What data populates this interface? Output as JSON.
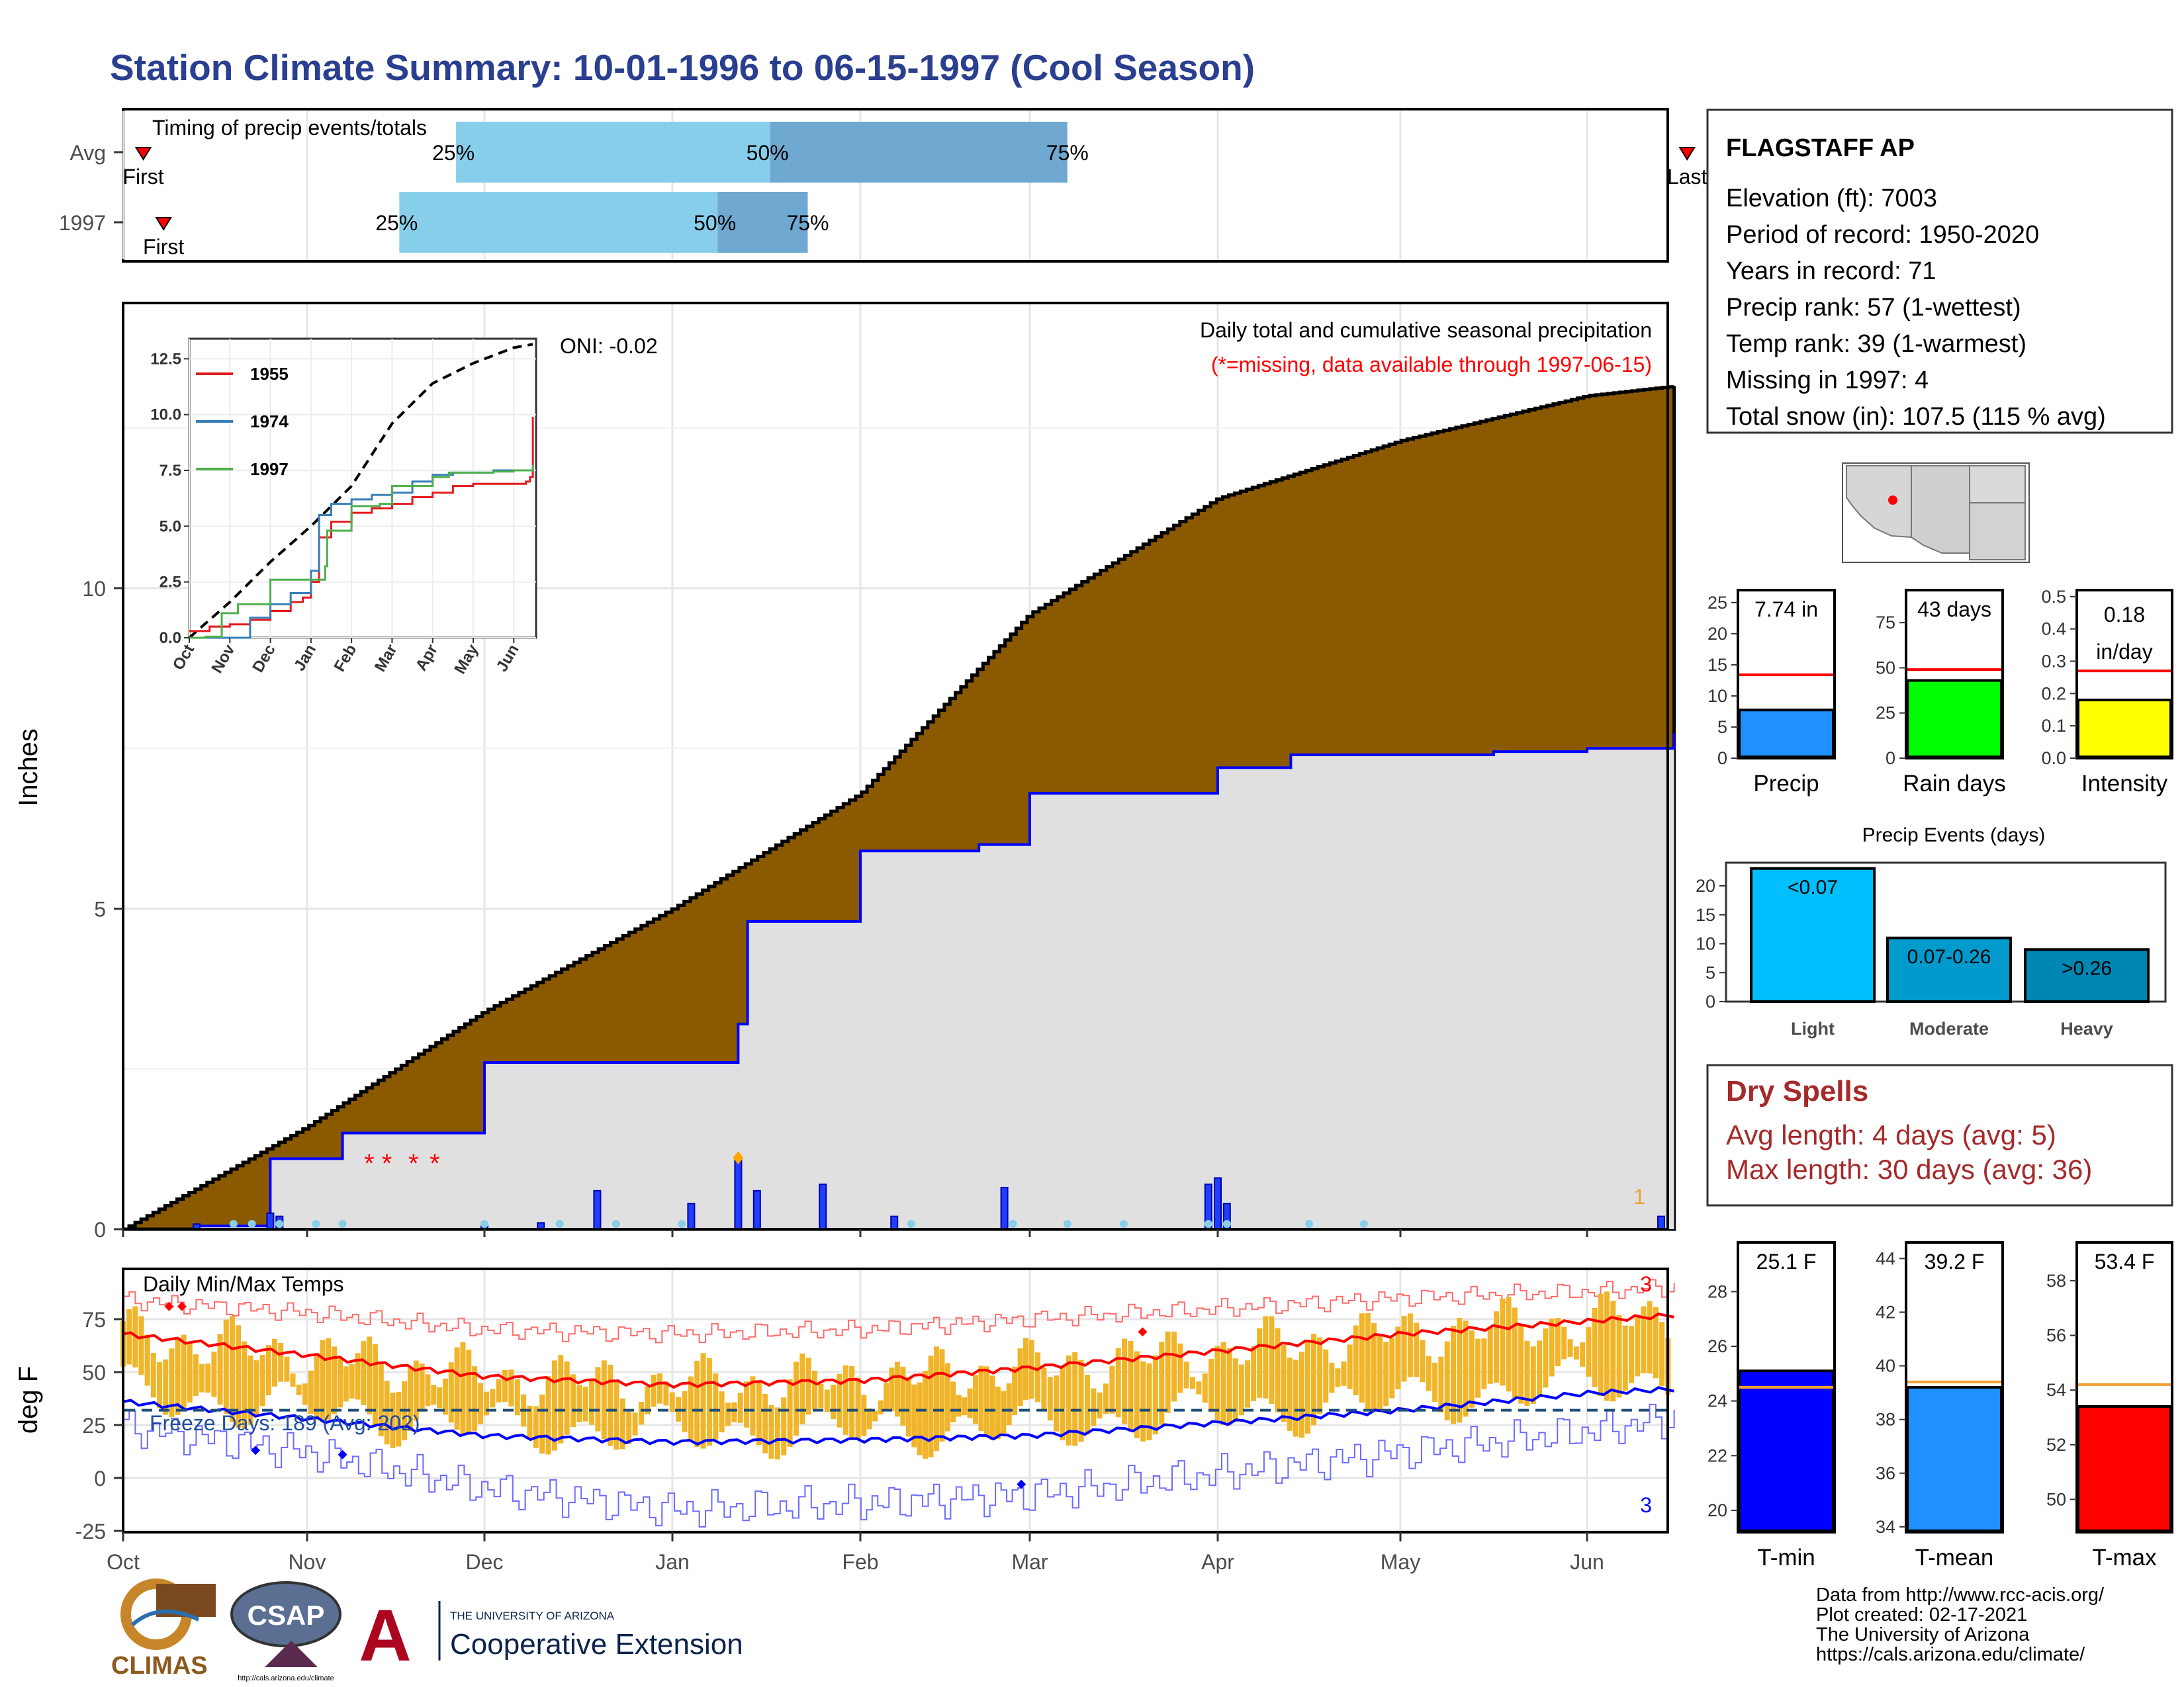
{
  "title": "Station Climate Summary: 10-01-1996 to 06-15-1997 (Cool Season)",
  "station": {
    "name": "FLAGSTAFF AP",
    "lines": [
      "Elevation (ft): 7003",
      "Period of record: 1950-2020",
      "Years in record: 71",
      "Precip rank: 57 (1-wettest)",
      "Temp rank: 39 (1-warmest)",
      "Missing in 1997: 4",
      "Total snow (in): 107.5 (115 % avg)"
    ]
  },
  "timing": {
    "title": "Timing of precip events/totals",
    "rows": [
      {
        "label": "Avg",
        "first": 0.11,
        "p25": 1.84,
        "p50": 3.52,
        "p75": 5.2,
        "last": 8.54,
        "first_label": "First",
        "last_label": "Last",
        "p25_label": "25%",
        "p50_label": "50%",
        "p75_label": "75%"
      },
      {
        "label": "1997",
        "first": 0.22,
        "p25": 1.52,
        "p50": 3.24,
        "p75": 3.72,
        "last": 8.9,
        "first_label": "First",
        "last_label": "Last",
        "p25_label": "25%",
        "p50_label": "50%",
        "p75_label": "75%"
      }
    ]
  },
  "colors": {
    "title": "#2a3f8f",
    "cum_avg_fill": "#8b5a00",
    "cum_obs_fill": "#e0e0e0",
    "cum_obs_line": "#0000ff",
    "bar_daily": "#1f3fff",
    "light_blue": "#87ceeb",
    "mid_blue": "#6fa8d0",
    "temp_bar": "#f0b52a",
    "red": "#ff0000",
    "dry_title": "#a52a2a"
  },
  "chart_data": [
    {
      "type": "area",
      "id": "cumulative",
      "title": "Daily total and cumulative seasonal precipitation",
      "subtitle": "(*=missing, data available through 1997-06-15)",
      "ylabel": "Inches",
      "ylim": [
        0,
        13.2
      ],
      "yticks": [
        "0",
        "5",
        "10"
      ],
      "x_months": [
        "Oct",
        "Nov",
        "Dec",
        "Jan",
        "Feb",
        "Mar",
        "Apr",
        "May",
        "Jun"
      ],
      "oni_label": "ONI: -0.02",
      "count_label": "1",
      "avg_cumulative": {
        "month_index": [
          0,
          1,
          2,
          3,
          4,
          5,
          6,
          7,
          8,
          8.47
        ],
        "values": [
          0,
          1.6,
          3.4,
          5.0,
          6.8,
          9.6,
          11.4,
          12.3,
          13.0,
          13.15
        ]
      },
      "obs_cumulative": {
        "month_index": [
          0,
          0.4,
          0.8,
          1.2,
          2.0,
          2.9,
          3.35,
          3.4,
          3.8,
          4.0,
          4.7,
          5.0,
          5.6,
          6.0,
          6.4,
          7.0,
          7.5,
          8.0,
          8.47
        ],
        "values": [
          0,
          0.05,
          1.1,
          1.5,
          2.6,
          2.6,
          3.2,
          4.8,
          4.8,
          5.9,
          6.0,
          6.8,
          6.8,
          7.2,
          7.4,
          7.4,
          7.45,
          7.5,
          7.74
        ]
      },
      "daily_bars": [
        [
          0.4,
          0.08
        ],
        [
          0.8,
          0.25
        ],
        [
          0.85,
          0.2
        ],
        [
          2.0,
          0.05
        ],
        [
          2.3,
          0.1
        ],
        [
          2.6,
          0.6
        ],
        [
          3.1,
          0.4
        ],
        [
          3.35,
          1.1
        ],
        [
          3.45,
          0.6
        ],
        [
          3.8,
          0.7
        ],
        [
          4.2,
          0.2
        ],
        [
          4.85,
          0.65
        ],
        [
          5.95,
          0.7
        ],
        [
          6.0,
          0.8
        ],
        [
          6.05,
          0.4
        ],
        [
          8.4,
          0.2
        ]
      ]
    },
    {
      "type": "line",
      "id": "inset",
      "series": [
        {
          "name": "1955",
          "color": "#e41a1c",
          "x": [
            0,
            0.5,
            1,
            1.5,
            2,
            2.5,
            2.8,
            3,
            3.2,
            3.5,
            4,
            4.5,
            5,
            5.5,
            6,
            6.5,
            7,
            7.5,
            8,
            8.3,
            8.4,
            8.47
          ],
          "y": [
            0.3,
            0.5,
            0.6,
            0.8,
            1.2,
            1.6,
            1.8,
            2.5,
            4.5,
            5.2,
            5.6,
            5.8,
            6.0,
            6.3,
            6.5,
            6.8,
            6.9,
            6.9,
            6.9,
            7.0,
            7.2,
            9.9
          ]
        },
        {
          "name": "1974",
          "color": "#377eb8",
          "x": [
            0,
            1.2,
            1.5,
            2,
            2.5,
            3,
            3.2,
            3.5,
            4,
            4.5,
            5,
            5.5,
            6,
            6.5,
            7,
            7.5,
            8,
            8.47
          ],
          "y": [
            0,
            0,
            0.9,
            1.5,
            2.0,
            3.0,
            5.5,
            6.0,
            6.2,
            6.4,
            6.5,
            7.0,
            7.3,
            7.4,
            7.4,
            7.5,
            7.5,
            7.6
          ]
        },
        {
          "name": "1997",
          "color": "#4daf4a",
          "x": [
            0,
            0.4,
            0.8,
            1.2,
            2.0,
            2.9,
            3.35,
            3.4,
            3.8,
            4.0,
            4.7,
            5.0,
            5.6,
            6.0,
            6.4,
            7.0,
            7.5,
            8.0,
            8.47
          ],
          "y": [
            0,
            0.05,
            1.1,
            1.5,
            2.6,
            2.6,
            3.2,
            4.8,
            4.8,
            5.9,
            6.0,
            6.8,
            6.8,
            7.2,
            7.4,
            7.4,
            7.45,
            7.5,
            7.74
          ]
        }
      ],
      "avg_line": {
        "x": [
          0,
          1,
          2,
          3,
          4,
          5,
          6,
          7,
          8,
          8.47
        ],
        "y": [
          0,
          1.6,
          3.4,
          5.0,
          6.8,
          9.6,
          11.4,
          12.3,
          13.0,
          13.15
        ]
      },
      "yticks": [
        "0.0",
        "2.5",
        "5.0",
        "7.5",
        "10.0",
        "12.5"
      ],
      "x_months": [
        "Oct",
        "Nov",
        "Dec",
        "Jan",
        "Feb",
        "Mar",
        "Apr",
        "May",
        "Jun"
      ]
    },
    {
      "type": "bar",
      "id": "temps",
      "title": "Daily Min/Max Temps",
      "ylabel": "deg F",
      "ylim": [
        -25,
        90
      ],
      "yticks": [
        "-25",
        "0",
        "25",
        "50",
        "75"
      ],
      "x_months": [
        "Oct",
        "Nov",
        "Dec",
        "Jan",
        "Feb",
        "Mar",
        "Apr",
        "May",
        "Jun"
      ],
      "freeze_label": "Freeze Days: 189 (Avg: 202)",
      "freeze_line": 32,
      "avg_max": {
        "x": [
          0,
          1,
          2,
          3,
          4,
          5,
          6,
          7,
          8,
          8.47
        ],
        "y": [
          68,
          58,
          48,
          44,
          46,
          52,
          60,
          68,
          74,
          77
        ]
      },
      "avg_min": {
        "x": [
          0,
          1,
          2,
          3,
          4,
          5,
          6,
          7,
          8,
          8.47
        ],
        "y": [
          36,
          28,
          20,
          17,
          18,
          20,
          26,
          32,
          40,
          42
        ]
      },
      "record_high": {
        "x": [
          0,
          1,
          2,
          3,
          4,
          5,
          6,
          7,
          8,
          8.47
        ],
        "y": [
          84,
          78,
          70,
          68,
          70,
          75,
          80,
          85,
          88,
          90
        ]
      },
      "record_low": {
        "x": [
          0,
          1,
          2,
          3,
          4,
          5,
          6,
          7,
          8,
          8.47
        ],
        "y": [
          24,
          12,
          -5,
          -15,
          -12,
          -8,
          2,
          12,
          22,
          28
        ]
      },
      "top_count": "3",
      "bottom_count": "3"
    },
    {
      "type": "bar",
      "id": "precip_total",
      "categories": [
        "Precip"
      ],
      "values": [
        7.74
      ],
      "label": "7.74 in",
      "avg": 13.4,
      "ylim": [
        0,
        27
      ],
      "yticks": [
        "0",
        "5",
        "10",
        "15",
        "20",
        "25"
      ],
      "color": "#1e90ff"
    },
    {
      "type": "bar",
      "id": "rain_days",
      "categories": [
        "Rain days"
      ],
      "values": [
        43
      ],
      "label": "43 days",
      "avg": 49,
      "ylim": [
        0,
        93
      ],
      "yticks": [
        "0",
        "25",
        "50",
        "75"
      ],
      "color": "#00ff00"
    },
    {
      "type": "bar",
      "id": "intensity",
      "categories": [
        "Intensity"
      ],
      "values": [
        0.18
      ],
      "label_lines": [
        "0.18",
        "in/day"
      ],
      "avg": 0.27,
      "ylim": [
        0,
        0.52
      ],
      "yticks": [
        "0.0",
        "0.1",
        "0.2",
        "0.3",
        "0.4",
        "0.5"
      ],
      "color": "#ffff00"
    },
    {
      "type": "bar",
      "id": "precip_events",
      "title": "Precip Events (days)",
      "categories": [
        "Light",
        "Moderate",
        "Heavy"
      ],
      "values": [
        23,
        11,
        9
      ],
      "bar_labels": [
        "<0.07",
        "0.07-0.26",
        ">0.26"
      ],
      "colors": [
        "#00bfff",
        "#009acd",
        "#0086b3"
      ],
      "ylim": [
        0,
        24
      ],
      "yticks": [
        "0",
        "5",
        "10",
        "15",
        "20"
      ]
    },
    {
      "type": "bar",
      "id": "tmin",
      "categories": [
        "T-min"
      ],
      "values": [
        25.1
      ],
      "label": "25.1 F",
      "avg": 24.5,
      "ylim": [
        19.2,
        29.8
      ],
      "yticks": [
        "20",
        "22",
        "24",
        "26",
        "28"
      ],
      "color": "#0000ff"
    },
    {
      "type": "bar",
      "id": "tmean",
      "categories": [
        "T-mean"
      ],
      "values": [
        39.2
      ],
      "label": "39.2 F",
      "avg": 39.4,
      "ylim": [
        33.8,
        44.6
      ],
      "yticks": [
        "34",
        "36",
        "38",
        "40",
        "42",
        "44"
      ],
      "color": "#1e90ff"
    },
    {
      "type": "bar",
      "id": "tmax",
      "categories": [
        "T-max"
      ],
      "values": [
        53.4
      ],
      "label": "53.4 F",
      "avg": 54.2,
      "ylim": [
        48.8,
        59.4
      ],
      "yticks": [
        "50",
        "52",
        "54",
        "56",
        "58"
      ],
      "color": "#ff0000"
    }
  ],
  "dry_spells": {
    "title": "Dry Spells",
    "avg_line": "Avg length: 4 days (avg: 5)",
    "max_line": "Max length: 30 days (avg: 36)"
  },
  "logos": {
    "climas": "CLIMAS",
    "csap": "CSAP",
    "csap_url": "http://cals.arizona.edu/climate",
    "ua_small": "THE UNIVERSITY OF ARIZONA",
    "ua_big": "Cooperative Extension"
  },
  "footer": [
    "Data from http://www.rcc-acis.org/",
    "Plot created: 02-17-2021",
    "The University of Arizona",
    "https://cals.arizona.edu/climate/"
  ]
}
